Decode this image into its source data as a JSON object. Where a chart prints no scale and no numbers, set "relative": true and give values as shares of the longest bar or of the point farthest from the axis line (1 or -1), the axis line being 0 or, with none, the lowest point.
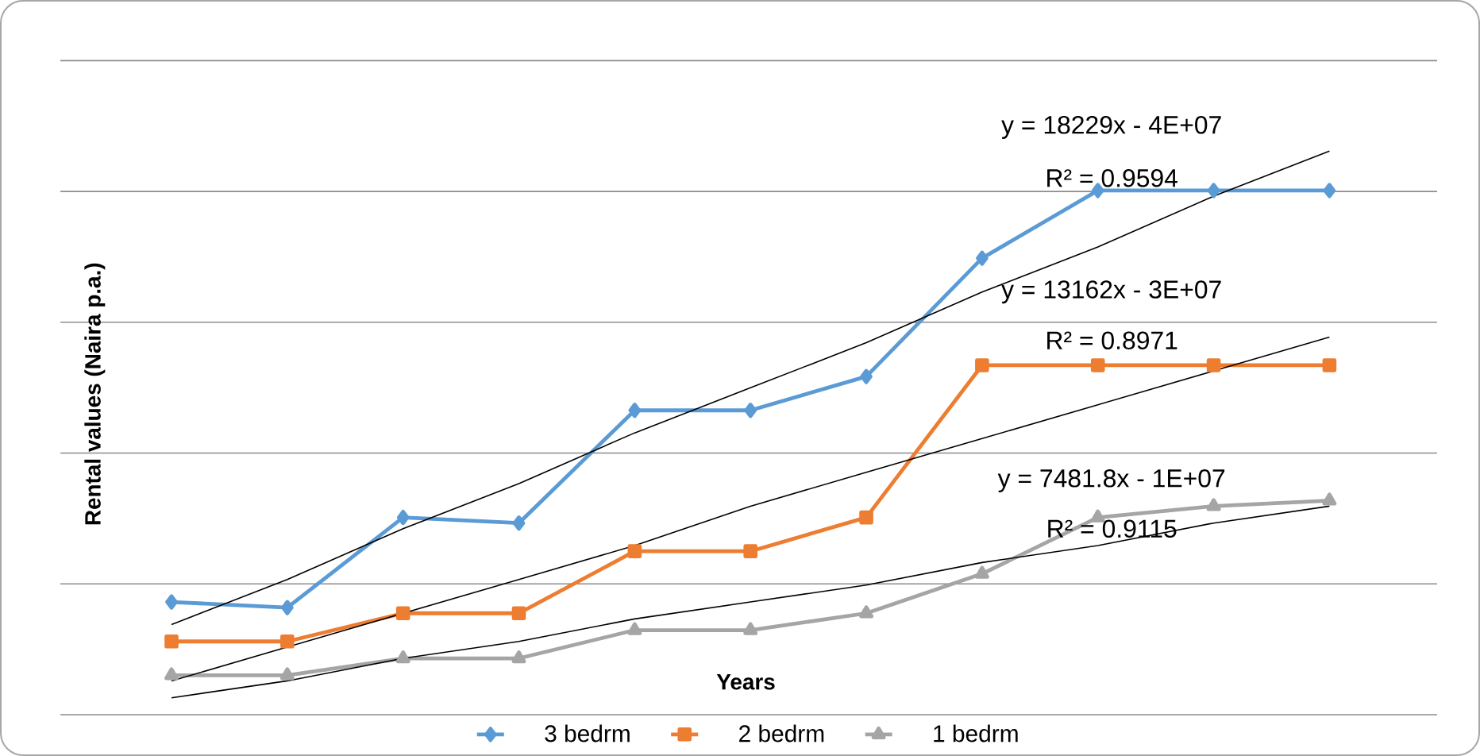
{
  "chart_data": {
    "type": "line",
    "relative": true,
    "xlabel": "Years",
    "ylabel": "Rental values (Naira p.a.)",
    "categories": [
      null,
      null,
      null,
      null,
      null,
      null,
      null,
      null,
      null,
      null,
      null
    ],
    "series": [
      {
        "name": "3 bedrm",
        "color": "#5b9bd5",
        "marker": "diamond",
        "values": [
          0.2,
          0.19,
          0.35,
          0.34,
          0.54,
          0.54,
          0.6,
          0.81,
          0.93,
          0.93,
          0.93
        ]
      },
      {
        "name": "2 bedrm",
        "color": "#ed7d31",
        "marker": "square",
        "values": [
          0.13,
          0.13,
          0.18,
          0.18,
          0.29,
          0.29,
          0.35,
          0.62,
          0.62,
          0.62,
          0.62
        ]
      },
      {
        "name": "1 bedrm",
        "color": "#a5a5a5",
        "marker": "triangle",
        "values": [
          0.07,
          0.07,
          0.1,
          0.1,
          0.15,
          0.15,
          0.18,
          0.25,
          0.35,
          0.37,
          0.38
        ]
      },
      {
        "type": "line",
        "color": "#000000",
        "marker": "none",
        "values": [
          0.16,
          0.24,
          0.33,
          0.41,
          0.5,
          0.58,
          0.66,
          0.75,
          0.83,
          0.92,
          1.0
        ]
      },
      {
        "type": "line",
        "color": "#000000",
        "marker": "none",
        "values": [
          0.06,
          0.12,
          0.18,
          0.24,
          0.3,
          0.37,
          0.43,
          0.49,
          0.55,
          0.61,
          0.67
        ]
      },
      {
        "type": "line",
        "color": "#000000",
        "marker": "none",
        "values": [
          0.03,
          0.06,
          0.1,
          0.13,
          0.17,
          0.2,
          0.23,
          0.27,
          0.3,
          0.34,
          0.37
        ]
      }
    ],
    "annotations": [
      "y = 18229x - 4E+07",
      "R² = 0.9594",
      "y = 13162x - 3E+07",
      "R² = 0.8971",
      "y = 7481.8x - 1E+07",
      "R² = 0.9115"
    ],
    "grid": "y",
    "legend": "bottom"
  }
}
